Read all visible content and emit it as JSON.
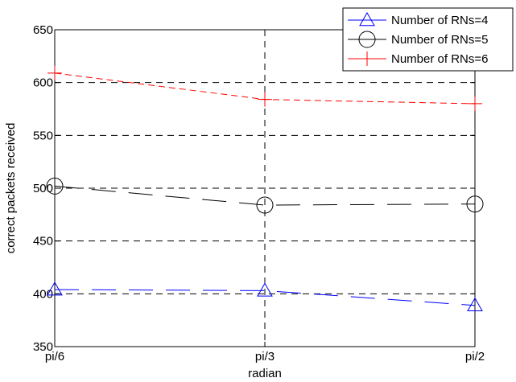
{
  "chart_data": {
    "type": "line",
    "xlabel": "radian",
    "ylabel": "correct packets received",
    "categories": [
      "pi/6",
      "pi/3",
      "pi/2"
    ],
    "ylim": [
      350,
      650
    ],
    "yticks": [
      "350",
      "400",
      "450",
      "500",
      "550",
      "600",
      "650"
    ],
    "grid": true,
    "legend_position": "top-right",
    "series": [
      {
        "name": "Number of RNs=4",
        "values": [
          404,
          403,
          389
        ],
        "color": "#0000ff",
        "marker": "triangle",
        "dash": "long-dash"
      },
      {
        "name": "Number of RNs=5",
        "values": [
          502,
          484,
          485
        ],
        "color": "#000000",
        "marker": "circle",
        "dash": "long-dash"
      },
      {
        "name": "Number of RNs=6",
        "values": [
          609,
          584,
          580
        ],
        "color": "#ff0000",
        "marker": "plus",
        "dash": "dash"
      }
    ]
  }
}
